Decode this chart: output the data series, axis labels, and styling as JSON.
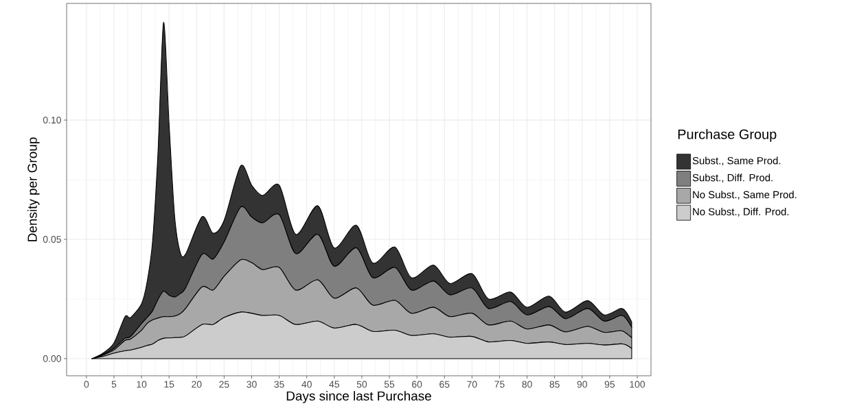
{
  "chart_data": {
    "type": "area",
    "stacked": true,
    "xlabel": "Days since last Purchase",
    "ylabel": "Density per Group",
    "legend_title": "Purchase Group",
    "legend": "right",
    "grid": true,
    "x": [
      1,
      3,
      5,
      7,
      8,
      10,
      11,
      12,
      13,
      14,
      15,
      16,
      17,
      18,
      21,
      23,
      25,
      28,
      30,
      32,
      35,
      38,
      42,
      45,
      49,
      52,
      56,
      59,
      63,
      66,
      70,
      73,
      77,
      80,
      84,
      87,
      91,
      94,
      97,
      98,
      99
    ],
    "xlim": [
      -3.6,
      102.5
    ],
    "ylim": [
      -0.0072,
      0.1489
    ],
    "xticks": [
      0,
      5,
      10,
      15,
      20,
      25,
      30,
      35,
      40,
      45,
      50,
      55,
      60,
      65,
      70,
      75,
      80,
      85,
      90,
      95,
      100
    ],
    "yticks": [
      {
        "value": 0,
        "label": "0.00"
      },
      {
        "value": 0.05,
        "label": "0.05"
      },
      {
        "value": 0.1,
        "label": "0.10"
      }
    ],
    "series": [
      {
        "name": "No Subst., Diff. Prod.",
        "color": "#cccccc",
        "values": [
          0,
          0.0009,
          0.0023,
          0.0033,
          0.0036,
          0.0047,
          0.0055,
          0.0061,
          0.0076,
          0.0085,
          0.0087,
          0.0088,
          0.0089,
          0.0095,
          0.0143,
          0.0143,
          0.0172,
          0.0195,
          0.019,
          0.0181,
          0.0181,
          0.0143,
          0.0157,
          0.0128,
          0.0143,
          0.0114,
          0.0119,
          0.0097,
          0.0104,
          0.009,
          0.0093,
          0.007,
          0.0076,
          0.0064,
          0.007,
          0.0059,
          0.0064,
          0.0057,
          0.0062,
          0.0057,
          0.0042
        ]
      },
      {
        "name": "No Subst., Same Prod.",
        "color": "#a8a8a8",
        "values": [
          0,
          0.0005,
          0.0013,
          0.0043,
          0.0046,
          0.0072,
          0.0092,
          0.0101,
          0.0094,
          0.0091,
          0.0089,
          0.009,
          0.0099,
          0.0115,
          0.0158,
          0.0144,
          0.0173,
          0.0219,
          0.0212,
          0.0192,
          0.0201,
          0.0144,
          0.0173,
          0.0125,
          0.0153,
          0.011,
          0.0125,
          0.0093,
          0.0111,
          0.0086,
          0.0097,
          0.0071,
          0.0081,
          0.006,
          0.0071,
          0.0053,
          0.0071,
          0.0053,
          0.0055,
          0.0049,
          0.0045
        ]
      },
      {
        "name": "Subst., Diff. Prod.",
        "color": "#7f7f7f",
        "values": [
          0,
          0.0003,
          0.0007,
          0.0009,
          0.001,
          0.0028,
          0.0025,
          0.0038,
          0.0078,
          0.0106,
          0.009,
          0.008,
          0.0084,
          0.0086,
          0.0136,
          0.013,
          0.0144,
          0.0221,
          0.0191,
          0.0196,
          0.0221,
          0.0153,
          0.0191,
          0.0134,
          0.0168,
          0.0115,
          0.0138,
          0.0097,
          0.011,
          0.0091,
          0.0106,
          0.0069,
          0.0082,
          0.0059,
          0.0077,
          0.0055,
          0.0075,
          0.0047,
          0.0064,
          0.0061,
          0.0044
        ]
      },
      {
        "name": "Subst., Same Prod.",
        "color": "#333333",
        "values": [
          0,
          0.0006,
          0.0023,
          0.0091,
          0.008,
          0.0083,
          0.0148,
          0.029,
          0.0622,
          0.1127,
          0.072,
          0.0342,
          0.0176,
          0.0142,
          0.0158,
          0.0109,
          0.0091,
          0.0173,
          0.0134,
          0.0115,
          0.0124,
          0.0081,
          0.012,
          0.0077,
          0.0095,
          0.0062,
          0.0086,
          0.0052,
          0.0067,
          0.0048,
          0.006,
          0.004,
          0.004,
          0.0032,
          0.0044,
          0.0028,
          0.0033,
          0.0026,
          0.0029,
          0.0028,
          0.0023
        ]
      }
    ]
  }
}
